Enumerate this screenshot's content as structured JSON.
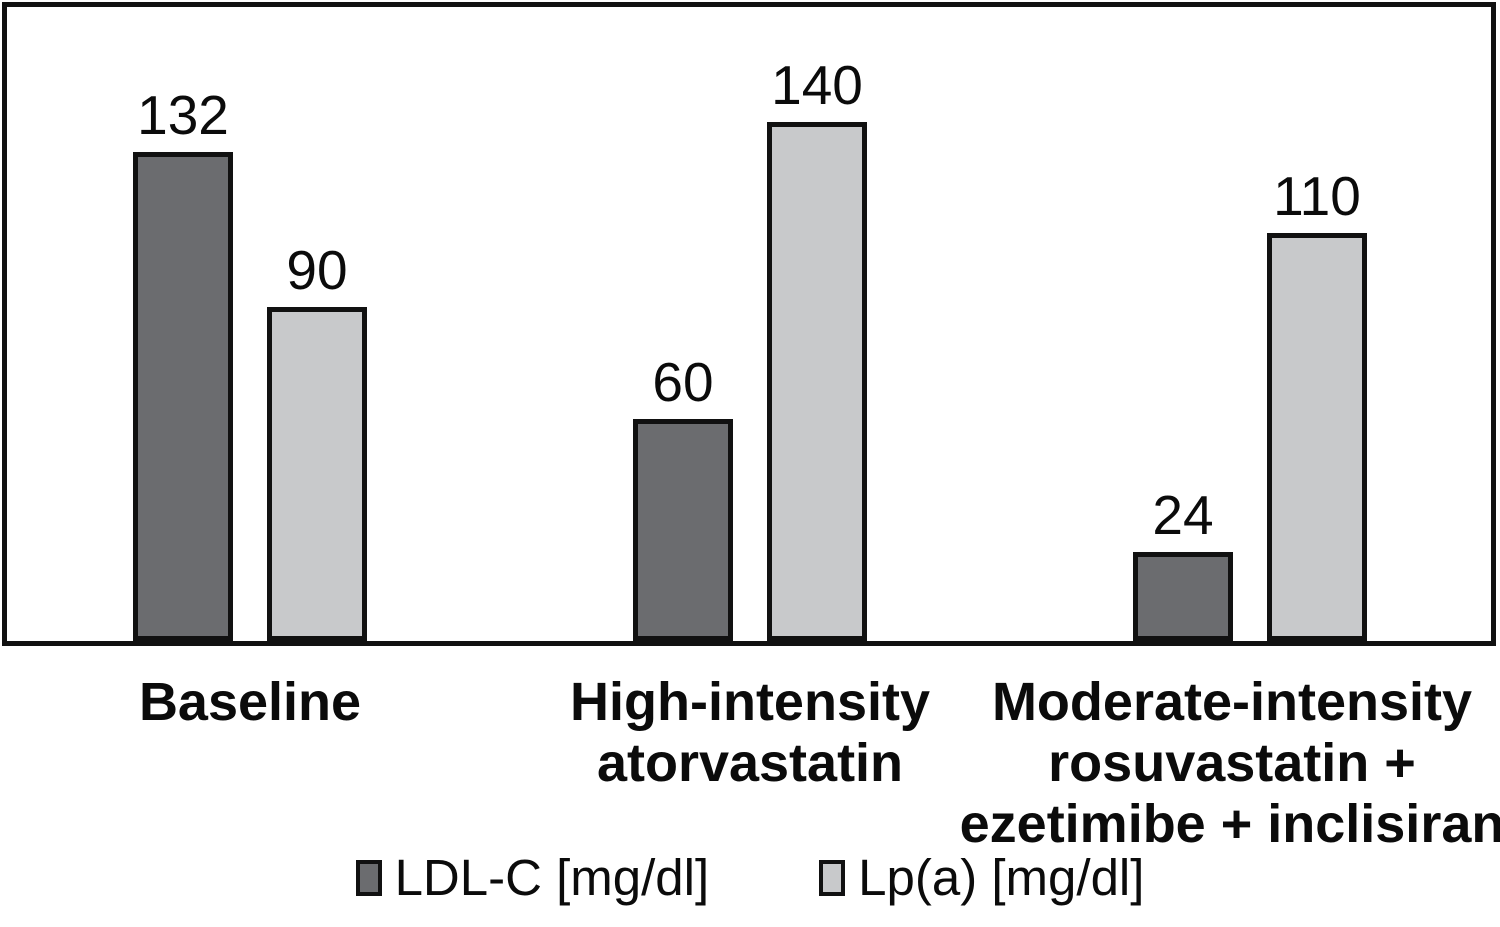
{
  "chart_data": {
    "type": "bar",
    "title": "",
    "xlabel": "",
    "ylabel": "",
    "categories": [
      "Baseline",
      "High-intensity atorvastatin",
      "Moderate-intensity rosuvastatin + ezetimibe + inclisiran"
    ],
    "category_lines": [
      [
        "Baseline"
      ],
      [
        "High-intensity",
        "atorvastatin"
      ],
      [
        "Moderate-intensity",
        "rosuvastatin +",
        "ezetimibe + inclisiran"
      ]
    ],
    "series": [
      {
        "name": "LDL-C [mg/dl]",
        "values": [
          132,
          60,
          24
        ],
        "color": "#6b6c6f"
      },
      {
        "name": "Lp(a) [mg/dl]",
        "values": [
          90,
          140,
          110
        ],
        "color": "#c8c9cb"
      }
    ],
    "value_labels_shown": true,
    "ylim": [
      0,
      171
    ],
    "grid": false,
    "axis_ticks_shown": false,
    "legend_position": "bottom",
    "bar_border_color": "#111111",
    "frame_color": "#111111",
    "background_color": "#ffffff"
  }
}
